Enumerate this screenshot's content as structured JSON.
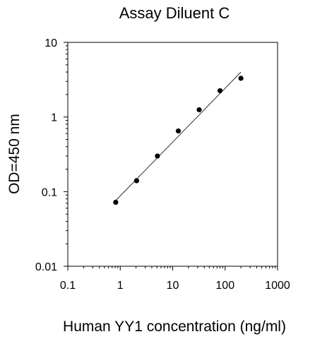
{
  "chart_data": {
    "type": "scatter",
    "title": "Assay Diluent C",
    "xlabel": "Human YY1 concentration (ng/ml)",
    "ylabel": "OD=450 nm",
    "x_scale": "log",
    "y_scale": "log",
    "xlim": [
      0.1,
      1000
    ],
    "ylim": [
      0.01,
      10
    ],
    "x_ticks": [
      0.1,
      1,
      10,
      100,
      1000
    ],
    "x_tick_labels": [
      "0.1",
      "1",
      "10",
      "100",
      "1000"
    ],
    "y_ticks": [
      0.01,
      0.1,
      1,
      10
    ],
    "y_tick_labels": [
      "0.01",
      "0.1",
      "1",
      "10"
    ],
    "grid": false,
    "series": [
      {
        "x": [
          0.82,
          2.05,
          5.12,
          12.8,
          32,
          80,
          200
        ],
        "y": [
          0.072,
          0.14,
          0.3,
          0.65,
          1.25,
          2.25,
          3.3
        ]
      }
    ],
    "fit_line": {
      "x": [
        0.82,
        200
      ],
      "y": [
        0.076,
        4.0
      ]
    }
  }
}
